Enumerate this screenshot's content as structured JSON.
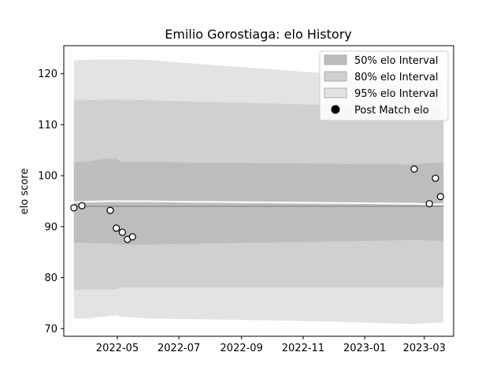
{
  "chart_data": {
    "type": "area",
    "title": "Emilio Gorostiaga: elo History",
    "xlabel": "",
    "ylabel": "elo score",
    "xlim": [
      "2022-03-09",
      "2023-03-30"
    ],
    "ylim": [
      68.5,
      125.5
    ],
    "x_ticks": [
      "2022-05",
      "2022-07",
      "2022-09",
      "2022-11",
      "2023-01",
      "2023-03"
    ],
    "y_ticks": [
      70,
      80,
      90,
      100,
      110,
      120
    ],
    "band_x": [
      "2022-03-19",
      "2022-04-01",
      "2022-04-20",
      "2022-04-30",
      "2022-05-05",
      "2022-06-01",
      "2022-07-01",
      "2022-09-01",
      "2022-11-01",
      "2023-01-01",
      "2023-02-20",
      "2023-03-05",
      "2023-03-20"
    ],
    "center": [
      94.8,
      94.9,
      95.0,
      95.0,
      95.0,
      95.0,
      94.9,
      94.8,
      94.7,
      94.6,
      94.5,
      94.4,
      94.4
    ],
    "mean_line": [
      94.0,
      94.0,
      94.0,
      94.0,
      94.0,
      94.0,
      94.0,
      94.0,
      94.0,
      94.0,
      94.0,
      94.0,
      94.0
    ],
    "series": [
      {
        "name": "95% elo Interval",
        "color": "#e3e3e3",
        "upper": [
          122.6,
          122.7,
          122.8,
          122.8,
          122.8,
          122.7,
          122.2,
          121.3,
          120.4,
          119.5,
          118.7,
          118.5,
          118.4
        ],
        "lower": [
          72.0,
          72.0,
          72.4,
          72.6,
          72.3,
          72.0,
          71.9,
          71.7,
          71.5,
          71.2,
          70.9,
          71.1,
          71.2
        ]
      },
      {
        "name": "80% elo Interval",
        "color": "#d0d0d0",
        "upper": [
          114.8,
          114.8,
          114.9,
          114.9,
          114.9,
          114.8,
          114.6,
          114.3,
          114.0,
          113.6,
          113.2,
          113.0,
          113.0
        ],
        "lower": [
          77.7,
          77.7,
          77.7,
          77.7,
          78.1,
          78.1,
          78.1,
          78.1,
          78.1,
          78.1,
          78.1,
          78.1,
          78.1
        ]
      },
      {
        "name": "50% elo Interval",
        "color": "#bdbdbd",
        "upper": [
          102.6,
          102.8,
          103.3,
          103.4,
          102.7,
          102.7,
          102.6,
          102.5,
          102.4,
          102.3,
          102.2,
          102.5,
          102.6
        ],
        "lower": [
          86.9,
          86.8,
          86.7,
          86.6,
          86.5,
          86.5,
          86.6,
          86.8,
          87.0,
          87.2,
          87.4,
          87.3,
          87.2
        ]
      }
    ],
    "points_name": "Post Match elo",
    "points": [
      {
        "x": "2022-03-19",
        "y": 93.7
      },
      {
        "x": "2022-03-27",
        "y": 94.1
      },
      {
        "x": "2022-04-24",
        "y": 93.2
      },
      {
        "x": "2022-04-30",
        "y": 89.7
      },
      {
        "x": "2022-05-06",
        "y": 88.9
      },
      {
        "x": "2022-05-11",
        "y": 87.5
      },
      {
        "x": "2022-05-16",
        "y": 88.0
      },
      {
        "x": "2023-02-19",
        "y": 101.3
      },
      {
        "x": "2023-03-06",
        "y": 94.5
      },
      {
        "x": "2023-03-12",
        "y": 99.5
      },
      {
        "x": "2023-03-17",
        "y": 95.9
      }
    ],
    "legend_position": "top-right",
    "grid": false
  }
}
